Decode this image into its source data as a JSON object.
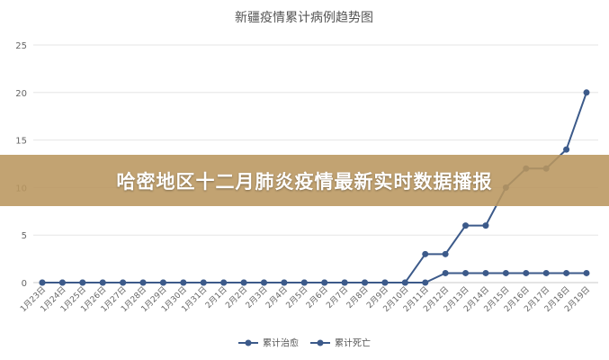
{
  "chart_data": {
    "type": "line",
    "title": "新疆疫情累计病例趋势图",
    "categories": [
      "1月23日",
      "1月24日",
      "1月25日",
      "1月26日",
      "1月27日",
      "1月28日",
      "1月29日",
      "1月30日",
      "1月31日",
      "2月1日",
      "2月2日",
      "2月3日",
      "2月4日",
      "2月5日",
      "2月6日",
      "2月7日",
      "2月8日",
      "2月9日",
      "2月10日",
      "2月11日",
      "2月12日",
      "2月13日",
      "2月14日",
      "2月15日",
      "2月16日",
      "2月17日",
      "2月18日",
      "2月19日"
    ],
    "series": [
      {
        "name": "累计治愈",
        "color": "#3c5a8a",
        "values": [
          0,
          0,
          0,
          0,
          0,
          0,
          0,
          0,
          0,
          0,
          0,
          0,
          0,
          0,
          0,
          0,
          0,
          0,
          0,
          3,
          3,
          6,
          6,
          10,
          12,
          12,
          14,
          20
        ]
      },
      {
        "name": "累计死亡",
        "color": "#3c5a8a",
        "values": [
          0,
          0,
          0,
          0,
          0,
          0,
          0,
          0,
          0,
          0,
          0,
          0,
          0,
          0,
          0,
          0,
          0,
          0,
          0,
          0,
          1,
          1,
          1,
          1,
          1,
          1,
          1,
          1
        ]
      }
    ],
    "yticks": [
      0,
      5,
      10,
      15,
      20,
      25
    ],
    "ylim": [
      0,
      25
    ],
    "grid": true,
    "legend": "bottom"
  },
  "banner": {
    "text": "哈密地区十二月肺炎疫情最新实时数据播报"
  }
}
